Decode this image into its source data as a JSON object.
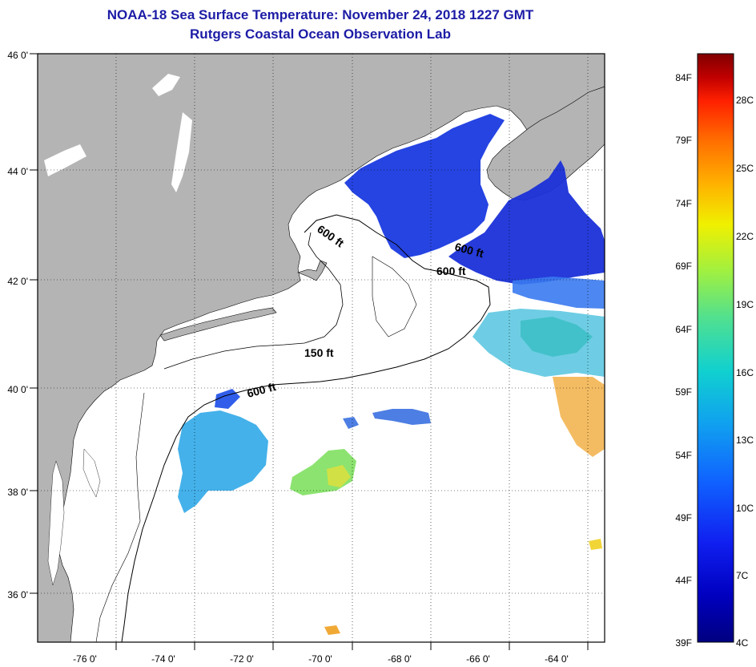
{
  "title": "NOAA-18 Sea Surface Temperature:  November 24, 2018 1227 GMT",
  "subtitle": "Rutgers Coastal Ocean Observation Lab",
  "lat_labels": [
    "46 0'",
    "44 0'",
    "42 0'",
    "40 0'",
    "38 0'",
    "36 0'"
  ],
  "lon_labels": [
    "-76 0'",
    "-74 0'",
    "-72 0'",
    "-70 0'",
    "-68 0'",
    "-66 0'",
    "-64 0'"
  ],
  "contour_labels": [
    "600 ft",
    "600 ft",
    "600 ft",
    "150 ft",
    "600 ft"
  ],
  "colorbar": {
    "f_labels": [
      "84F",
      "79F",
      "74F",
      "69F",
      "64F",
      "59F",
      "54F",
      "49F",
      "44F",
      "39F"
    ],
    "c_labels": [
      "28C",
      "25C",
      "22C",
      "19C",
      "16C",
      "13C",
      "10C",
      "7C",
      "4C"
    ],
    "colors": [
      "#800000",
      "#c00000",
      "#ff2000",
      "#ff7000",
      "#ffb000",
      "#f0f000",
      "#a0f040",
      "#50e090",
      "#10d0d0",
      "#10a0f0",
      "#1060ff",
      "#1020f0",
      "#0000b0",
      "#000080"
    ]
  },
  "colors": {
    "land": "#b4b4b4",
    "ocean": "#ffffff",
    "title": "#1c1ca6"
  }
}
